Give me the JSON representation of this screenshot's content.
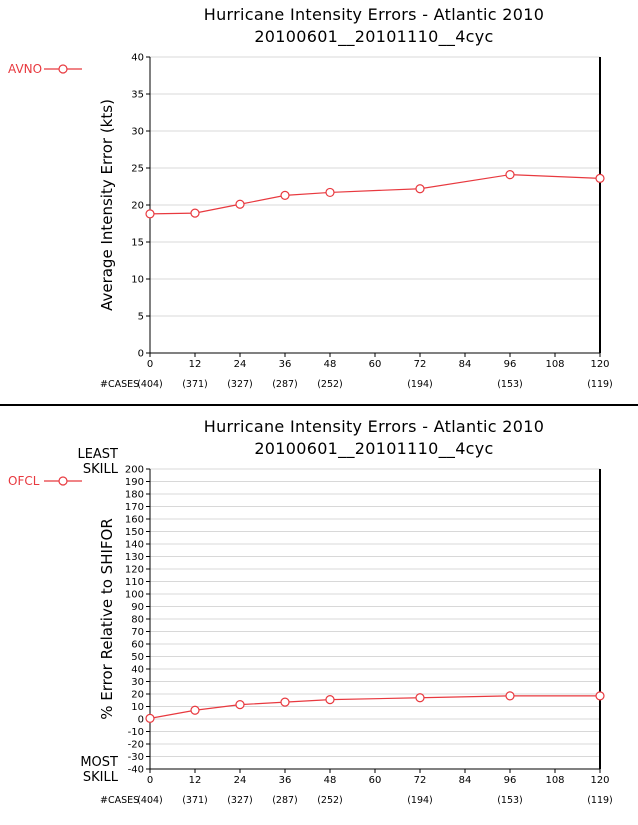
{
  "colors": {
    "series": "#e8393f",
    "grid": "#d8d8d8",
    "axis": "#000000"
  },
  "chart_data": [
    {
      "type": "line",
      "title": "Hurricane Intensity Errors - Atlantic 2010",
      "subtitle": "20100601__20101110__4cyc",
      "ylabel": "Average Intensity Error (kts)",
      "xlabel": "",
      "ylim": [
        0,
        40
      ],
      "y_ticks": [
        0,
        5,
        10,
        15,
        20,
        25,
        30,
        35,
        40
      ],
      "x_ticks": [
        0,
        12,
        24,
        36,
        48,
        60,
        72,
        84,
        96,
        108,
        120
      ],
      "grid": true,
      "cases_label": "#CASES",
      "cases": [
        {
          "x": 0,
          "label": "(404)"
        },
        {
          "x": 12,
          "label": "(371)"
        },
        {
          "x": 24,
          "label": "(327)"
        },
        {
          "x": 36,
          "label": "(287)"
        },
        {
          "x": 48,
          "label": "(252)"
        },
        {
          "x": 72,
          "label": "(194)"
        },
        {
          "x": 96,
          "label": "(153)"
        },
        {
          "x": 120,
          "label": "(119)"
        }
      ],
      "legend_position": "left",
      "series": [
        {
          "name": "AVNO",
          "x": [
            0,
            12,
            24,
            36,
            48,
            72,
            96,
            120
          ],
          "values": [
            18.8,
            18.9,
            20.1,
            21.3,
            21.7,
            22.2,
            24.1,
            23.6
          ]
        }
      ]
    },
    {
      "type": "line",
      "title": "Hurricane Intensity Errors - Atlantic 2010",
      "subtitle": "20100601__20101110__4cyc",
      "ylabel": "% Error Relative to SHIFOR",
      "xlabel": "",
      "ylim": [
        -40,
        200
      ],
      "y_ticks": [
        -40,
        -30,
        -20,
        -10,
        0,
        10,
        20,
        30,
        40,
        50,
        60,
        70,
        80,
        90,
        100,
        110,
        120,
        130,
        140,
        150,
        160,
        170,
        180,
        190,
        200
      ],
      "x_ticks": [
        0,
        12,
        24,
        36,
        48,
        60,
        72,
        84,
        96,
        108,
        120
      ],
      "grid": true,
      "top_annotation": [
        "LEAST",
        "SKILL"
      ],
      "bottom_annotation": [
        "MOST",
        "SKILL"
      ],
      "cases_label": "#CASES",
      "cases": [
        {
          "x": 0,
          "label": "(404)"
        },
        {
          "x": 12,
          "label": "(371)"
        },
        {
          "x": 24,
          "label": "(327)"
        },
        {
          "x": 36,
          "label": "(287)"
        },
        {
          "x": 48,
          "label": "(252)"
        },
        {
          "x": 72,
          "label": "(194)"
        },
        {
          "x": 96,
          "label": "(153)"
        },
        {
          "x": 120,
          "label": "(119)"
        }
      ],
      "legend_position": "left",
      "series": [
        {
          "name": "OFCL",
          "x": [
            0,
            12,
            24,
            36,
            48,
            72,
            96,
            120
          ],
          "values": [
            0.5,
            7,
            11.5,
            13.5,
            15.5,
            17,
            18.5,
            18.5
          ]
        }
      ]
    }
  ]
}
